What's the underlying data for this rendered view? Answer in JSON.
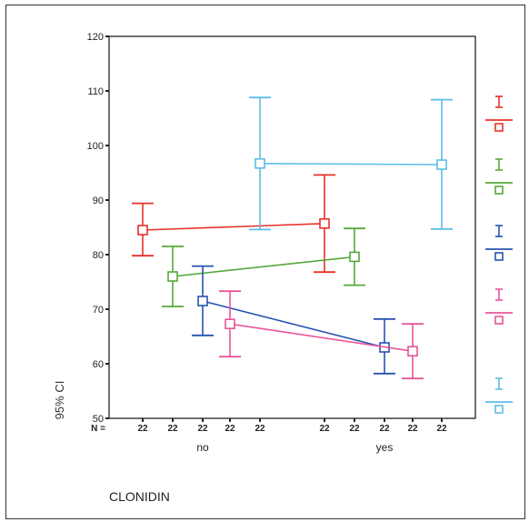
{
  "chart_data": {
    "type": "errorbar",
    "ylabel": "95% CI",
    "xlabel": "CLONIDIN",
    "ylim": [
      50,
      120
    ],
    "yticks": [
      50,
      60,
      70,
      80,
      90,
      100,
      110,
      120
    ],
    "categories": [
      "no",
      "yes"
    ],
    "n_label": "N =",
    "n_values": [
      "22",
      "22",
      "22",
      "22",
      "22",
      "22",
      "22",
      "22",
      "22",
      "22"
    ],
    "series": [
      {
        "color": "#e8312a",
        "mean": [
          84.5,
          85.7
        ],
        "lower": [
          79.8,
          76.8
        ],
        "upper": [
          89.4,
          94.6
        ]
      },
      {
        "color": "#54a83a",
        "mean": [
          76.0,
          79.6
        ],
        "lower": [
          70.5,
          74.4
        ],
        "upper": [
          81.5,
          84.8
        ]
      },
      {
        "color": "#2752b3",
        "mean": [
          71.5,
          63.0
        ],
        "lower": [
          65.2,
          58.2
        ],
        "upper": [
          77.9,
          68.2
        ]
      },
      {
        "color": "#e8559a",
        "mean": [
          67.3,
          62.3
        ],
        "lower": [
          61.3,
          57.3
        ],
        "upper": [
          73.3,
          67.3
        ]
      },
      {
        "color": "#5cbde8",
        "mean": [
          96.7,
          96.5
        ],
        "lower": [
          84.6,
          84.7
        ],
        "upper": [
          108.8,
          108.4
        ]
      }
    ],
    "legend_position": "right",
    "grid": false
  }
}
